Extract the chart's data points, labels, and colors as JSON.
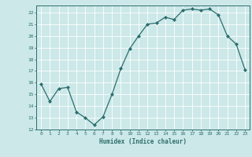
{
  "x": [
    0,
    1,
    2,
    3,
    4,
    5,
    6,
    7,
    8,
    9,
    10,
    11,
    12,
    13,
    14,
    15,
    16,
    17,
    18,
    19,
    20,
    21,
    22,
    23
  ],
  "y": [
    15.9,
    14.4,
    15.5,
    15.6,
    13.5,
    13.0,
    12.4,
    13.1,
    15.0,
    17.2,
    18.9,
    20.0,
    21.0,
    21.1,
    21.6,
    21.4,
    22.2,
    22.3,
    22.2,
    22.3,
    21.8,
    20.0,
    19.3,
    17.1
  ],
  "title": "",
  "xlabel": "Humidex (Indice chaleur)",
  "ylabel": "",
  "xlim": [
    -0.5,
    23.5
  ],
  "ylim": [
    12,
    22.6
  ],
  "yticks": [
    12,
    13,
    14,
    15,
    16,
    17,
    18,
    19,
    20,
    21,
    22
  ],
  "xticks": [
    0,
    1,
    2,
    3,
    4,
    5,
    6,
    7,
    8,
    9,
    10,
    11,
    12,
    13,
    14,
    15,
    16,
    17,
    18,
    19,
    20,
    21,
    22,
    23
  ],
  "line_color": "#2d6e6e",
  "bg_color": "#cce8e8",
  "grid_color": "#ffffff",
  "tick_color": "#2d6e6e",
  "label_color": "#2d6e6e"
}
